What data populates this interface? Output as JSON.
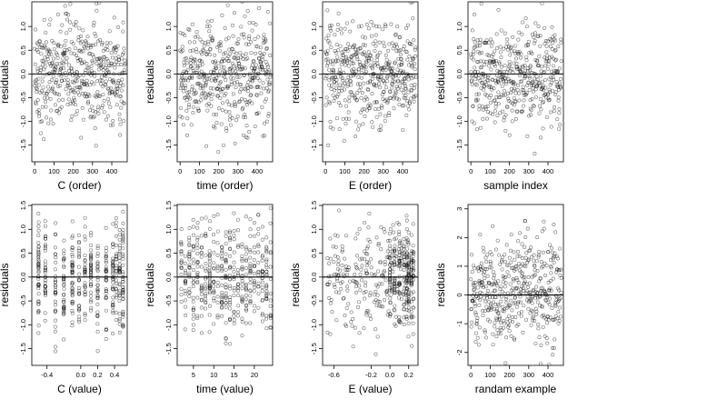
{
  "chart_data": [
    {
      "type": "scatter",
      "xlabel": "C (order)",
      "ylabel": "residuals",
      "xlim": [
        -15,
        480
      ],
      "ylim": [
        -1.85,
        1.52
      ],
      "x_ticks": [
        0,
        100,
        200,
        300,
        400
      ],
      "x_tick_labels": [
        "0",
        "100",
        "200",
        "300",
        "400"
      ],
      "y_ticks": [
        -1.5,
        -1.0,
        -0.5,
        0.0,
        0.5,
        1.0
      ],
      "y_tick_labels": [
        "-1.5",
        "-1.0",
        "-0.5",
        "0.0",
        "0.5",
        "1.0"
      ],
      "x_kind": "index",
      "n": 470,
      "hline": 0
    },
    {
      "type": "scatter",
      "xlabel": "time (order)",
      "ylabel": "residuals",
      "xlim": [
        -15,
        480
      ],
      "ylim": [
        -1.85,
        1.52
      ],
      "x_ticks": [
        0,
        100,
        200,
        300,
        400
      ],
      "x_tick_labels": [
        "0",
        "100",
        "200",
        "300",
        "400"
      ],
      "y_ticks": [
        -1.5,
        -1.0,
        -0.5,
        0.0,
        0.5,
        1.0
      ],
      "y_tick_labels": [
        "-1.5",
        "-1.0",
        "-0.5",
        "0.0",
        "0.5",
        "1.0"
      ],
      "x_kind": "index",
      "n": 470,
      "hline": 0
    },
    {
      "type": "scatter",
      "xlabel": "E (order)",
      "ylabel": "residuals",
      "xlim": [
        -15,
        480
      ],
      "ylim": [
        -1.85,
        1.52
      ],
      "x_ticks": [
        0,
        100,
        200,
        300,
        400
      ],
      "x_tick_labels": [
        "0",
        "100",
        "200",
        "300",
        "400"
      ],
      "y_ticks": [
        -1.5,
        -1.0,
        -0.5,
        0.0,
        0.5,
        1.0
      ],
      "y_tick_labels": [
        "-1.5",
        "-1.0",
        "-0.5",
        "0.0",
        "0.5",
        "1.0"
      ],
      "x_kind": "index",
      "n": 470,
      "hline": 0
    },
    {
      "type": "scatter",
      "xlabel": "sample index",
      "ylabel": "residuals",
      "xlim": [
        -15,
        480
      ],
      "ylim": [
        -1.85,
        1.52
      ],
      "x_ticks": [
        0,
        100,
        200,
        300,
        400
      ],
      "x_tick_labels": [
        "0",
        "100",
        "200",
        "300",
        "400"
      ],
      "y_ticks": [
        -1.5,
        -1.0,
        -0.5,
        0.0,
        0.5,
        1.0
      ],
      "y_tick_labels": [
        "-1.5",
        "-1.0",
        "-0.5",
        "0.0",
        "0.5",
        "1.0"
      ],
      "x_kind": "index",
      "n": 470,
      "hline": 0
    },
    {
      "type": "scatter",
      "xlabel": "C (value)",
      "ylabel": "residuals",
      "xlim": [
        -0.58,
        0.55
      ],
      "ylim": [
        -1.85,
        1.52
      ],
      "x_ticks": [
        -0.4,
        0.0,
        0.2,
        0.4
      ],
      "x_tick_labels": [
        "-0.4",
        "0.0",
        "0.2",
        "0.4"
      ],
      "y_ticks": [
        -1.5,
        -1.0,
        -0.5,
        0.0,
        0.5,
        1.0,
        1.5
      ],
      "y_tick_labels": [
        "-1.5",
        "-1.0",
        "-0.5",
        "0.0",
        "0.5",
        "1.0",
        "1.5"
      ],
      "x_kind": "levels",
      "x_levels": [
        -0.5,
        -0.42,
        -0.3,
        -0.2,
        -0.1,
        -0.02,
        0.05,
        0.12,
        0.2,
        0.3,
        0.38,
        0.42,
        0.46,
        0.5
      ],
      "n": 470,
      "hline": 0
    },
    {
      "type": "scatter",
      "xlabel": "time (value)",
      "ylabel": "residuals",
      "xlim": [
        1,
        24.5
      ],
      "ylim": [
        -1.85,
        1.52
      ],
      "x_ticks": [
        5,
        10,
        15,
        20
      ],
      "x_tick_labels": [
        "5",
        "10",
        "15",
        "20"
      ],
      "y_ticks": [
        -1.5,
        -1.0,
        -0.5,
        0.0,
        0.5,
        1.0,
        1.5
      ],
      "y_tick_labels": [
        "-1.5",
        "-1.0",
        "-0.5",
        "0.0",
        "0.5",
        "1.0",
        "1.5"
      ],
      "x_kind": "levels",
      "x_levels": [
        2,
        3,
        4,
        5,
        6,
        7,
        8,
        9,
        10,
        11,
        12,
        13,
        14,
        15,
        16,
        17,
        18,
        19,
        20,
        21,
        22,
        23,
        24
      ],
      "n": 470,
      "hline": 0
    },
    {
      "type": "scatter",
      "xlabel": "E (value)",
      "ylabel": "residuals",
      "xlim": [
        -0.72,
        0.3
      ],
      "ylim": [
        -1.85,
        1.52
      ],
      "x_ticks": [
        -0.6,
        -0.2,
        0.0,
        0.2
      ],
      "x_tick_labels": [
        "-0.6",
        "-0.2",
        "0.0",
        "0.2"
      ],
      "y_ticks": [
        -1.5,
        -1.0,
        -0.5,
        0.0,
        0.5,
        1.0,
        1.5
      ],
      "y_tick_labels": [
        "-1.5",
        "-1.0",
        "-0.5",
        "0.0",
        "0.5",
        "1.0",
        "1.5"
      ],
      "x_kind": "mixed",
      "x_levels": [
        0.0,
        0.05,
        0.1,
        0.15,
        0.18,
        0.2,
        0.23,
        0.25
      ],
      "n": 470,
      "hline": 0
    },
    {
      "type": "scatter",
      "xlabel": "randam example",
      "ylabel": "residuals",
      "xlim": [
        -15,
        480
      ],
      "ylim": [
        -2.45,
        3.15
      ],
      "x_ticks": [
        0,
        100,
        200,
        300,
        400
      ],
      "x_tick_labels": [
        "0",
        "100",
        "200",
        "300",
        "400"
      ],
      "y_ticks": [
        -2,
        -1,
        0,
        1,
        2,
        3
      ],
      "y_tick_labels": [
        "-2",
        "-1",
        "0",
        "1",
        "2",
        "3"
      ],
      "x_kind": "index",
      "n": 470,
      "hline": 0
    }
  ]
}
